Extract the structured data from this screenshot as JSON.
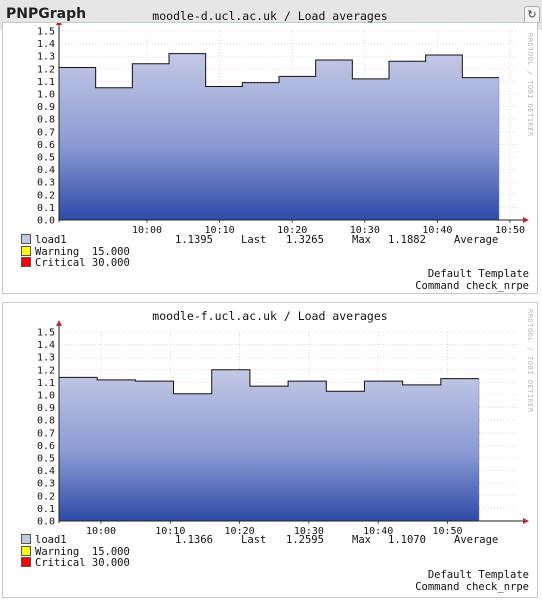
{
  "app_title": "PNPGraph",
  "graphs": [
    {
      "title": "moodle-d.ucl.ac.uk / Load averages",
      "side_label": "RRDTOOL / TOBI OETIKER",
      "legend": [
        {
          "name": "load1",
          "color": "#c0c8e8"
        },
        {
          "name": "Warning  15.000",
          "color": "#ffff00"
        },
        {
          "name": "Critical 30.000",
          "color": "#ff0000"
        }
      ],
      "stats": {
        "last": "1.1395",
        "last_label": "Last",
        "max": "1.3265",
        "max_label": "Max",
        "average": "1.1882",
        "average_label": "Average"
      },
      "footer": {
        "template": "Default Template",
        "command": "Command check_nrpe"
      }
    },
    {
      "title": "moodle-f.ucl.ac.uk / Load averages",
      "side_label": "RRDTOOL / TOBI OETIKER",
      "legend": [
        {
          "name": "load1",
          "color": "#c0c8e8"
        },
        {
          "name": "Warning  15.000",
          "color": "#ffff00"
        },
        {
          "name": "Critical 30.000",
          "color": "#ff0000"
        }
      ],
      "stats": {
        "last": "1.1366",
        "last_label": "Last",
        "max": "1.2595",
        "max_label": "Max",
        "average": "1.1070",
        "average_label": "Average"
      },
      "footer": {
        "template": "Default Template",
        "command": "Command check_nrpe"
      }
    }
  ],
  "chart_data": [
    {
      "type": "area",
      "title": "moodle-d.ucl.ac.uk / Load averages",
      "series": [
        {
          "name": "load1",
          "values": [
            1.21,
            1.05,
            1.24,
            1.32,
            1.06,
            1.09,
            1.14,
            1.27,
            1.12,
            1.26,
            1.31,
            1.13
          ]
        }
      ],
      "x_ticks": [
        "10:00",
        "10:10",
        "10:20",
        "10:30",
        "10:40",
        "10:50"
      ],
      "y_ticks": [
        "0.0",
        "0.1",
        "0.2",
        "0.3",
        "0.4",
        "0.5",
        "0.6",
        "0.7",
        "0.8",
        "0.9",
        "1.0",
        "1.1",
        "1.2",
        "1.3",
        "1.4",
        "1.5"
      ],
      "ylim": [
        0,
        1.5
      ]
    },
    {
      "type": "area",
      "title": "moodle-f.ucl.ac.uk / Load averages",
      "series": [
        {
          "name": "load1",
          "values": [
            1.14,
            1.12,
            1.11,
            1.01,
            1.2,
            1.07,
            1.11,
            1.03,
            1.11,
            1.08,
            1.13
          ]
        }
      ],
      "x_ticks": [
        "10:00",
        "10:10",
        "10:20",
        "10:30",
        "10:40",
        "10:50"
      ],
      "y_ticks": [
        "0.0",
        "0.1",
        "0.2",
        "0.3",
        "0.4",
        "0.5",
        "0.6",
        "0.7",
        "0.8",
        "0.9",
        "1.0",
        "1.1",
        "1.2",
        "1.3",
        "1.4",
        "1.5"
      ],
      "ylim": [
        0,
        1.5
      ]
    }
  ]
}
